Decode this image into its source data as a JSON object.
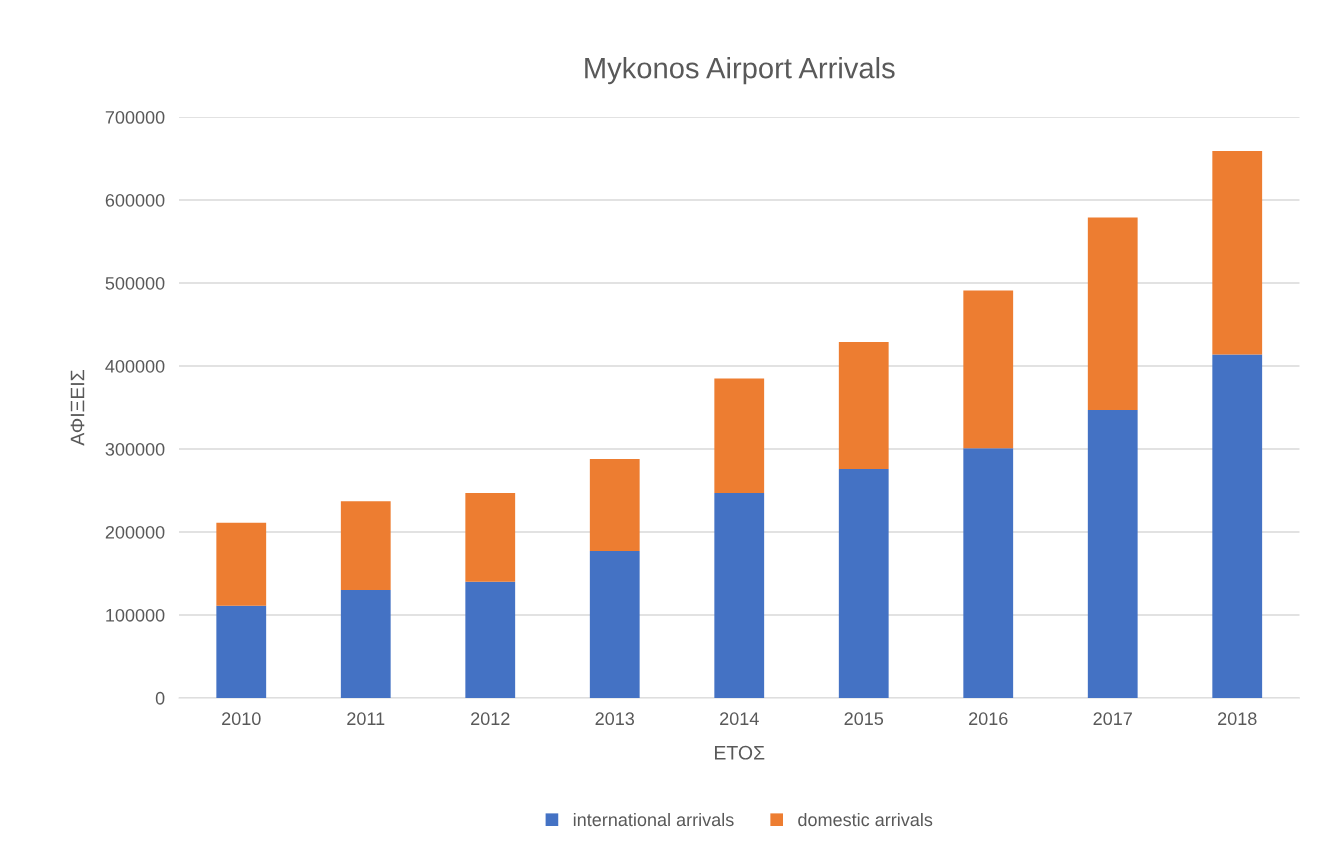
{
  "chart_data": {
    "type": "bar",
    "title": "Mykonos Airport Arrivals",
    "xlabel": "ΕΤΟΣ",
    "ylabel": "ΑΦΙΞΕΙΣ",
    "categories": [
      "2010",
      "2011",
      "2012",
      "2013",
      "2014",
      "2015",
      "2016",
      "2017",
      "2018"
    ],
    "stacked": true,
    "series": [
      {
        "name": "international arrivals",
        "color": "#4472c4",
        "values": [
          111000,
          130000,
          140000,
          177000,
          247000,
          276000,
          301000,
          347000,
          414000
        ]
      },
      {
        "name": "domestic arrivals",
        "color": "#ed7d31",
        "values": [
          100000,
          107000,
          107000,
          111000,
          138000,
          153000,
          190000,
          232000,
          245000
        ]
      }
    ],
    "ylim": [
      0,
      700000
    ],
    "yticks": [
      0,
      100000,
      200000,
      300000,
      400000,
      500000,
      600000,
      700000
    ],
    "grid": "y",
    "legend": "bottom"
  }
}
